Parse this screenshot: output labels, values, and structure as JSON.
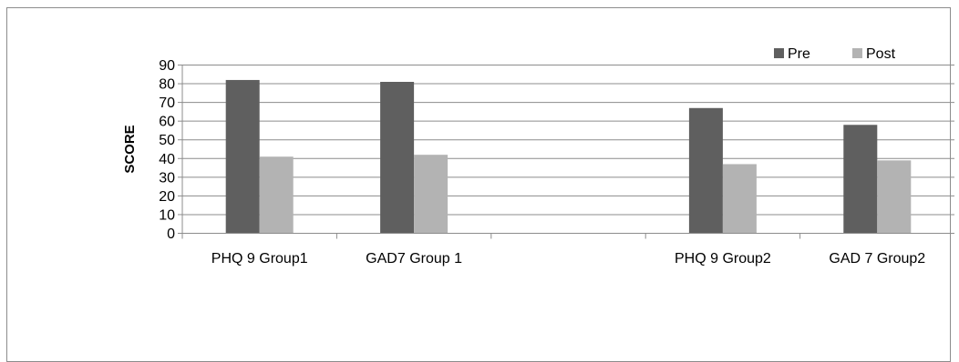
{
  "chart_data": {
    "type": "bar",
    "title": "",
    "xlabel": "",
    "ylabel": "SCORE",
    "ylim": [
      0,
      90
    ],
    "yticks": [
      0,
      10,
      20,
      30,
      40,
      50,
      60,
      70,
      80,
      90
    ],
    "categories": [
      "PHQ 9 Group1",
      "GAD7 Group 1",
      "",
      "PHQ 9 Group2",
      "GAD 7 Group2"
    ],
    "series": [
      {
        "name": "Pre",
        "color": "#5f5f5f",
        "values": [
          82,
          81,
          null,
          67,
          58
        ]
      },
      {
        "name": "Post",
        "color": "#b3b3b3",
        "values": [
          41,
          42,
          null,
          37,
          39
        ]
      }
    ],
    "grid": true,
    "legend": "top-right"
  }
}
